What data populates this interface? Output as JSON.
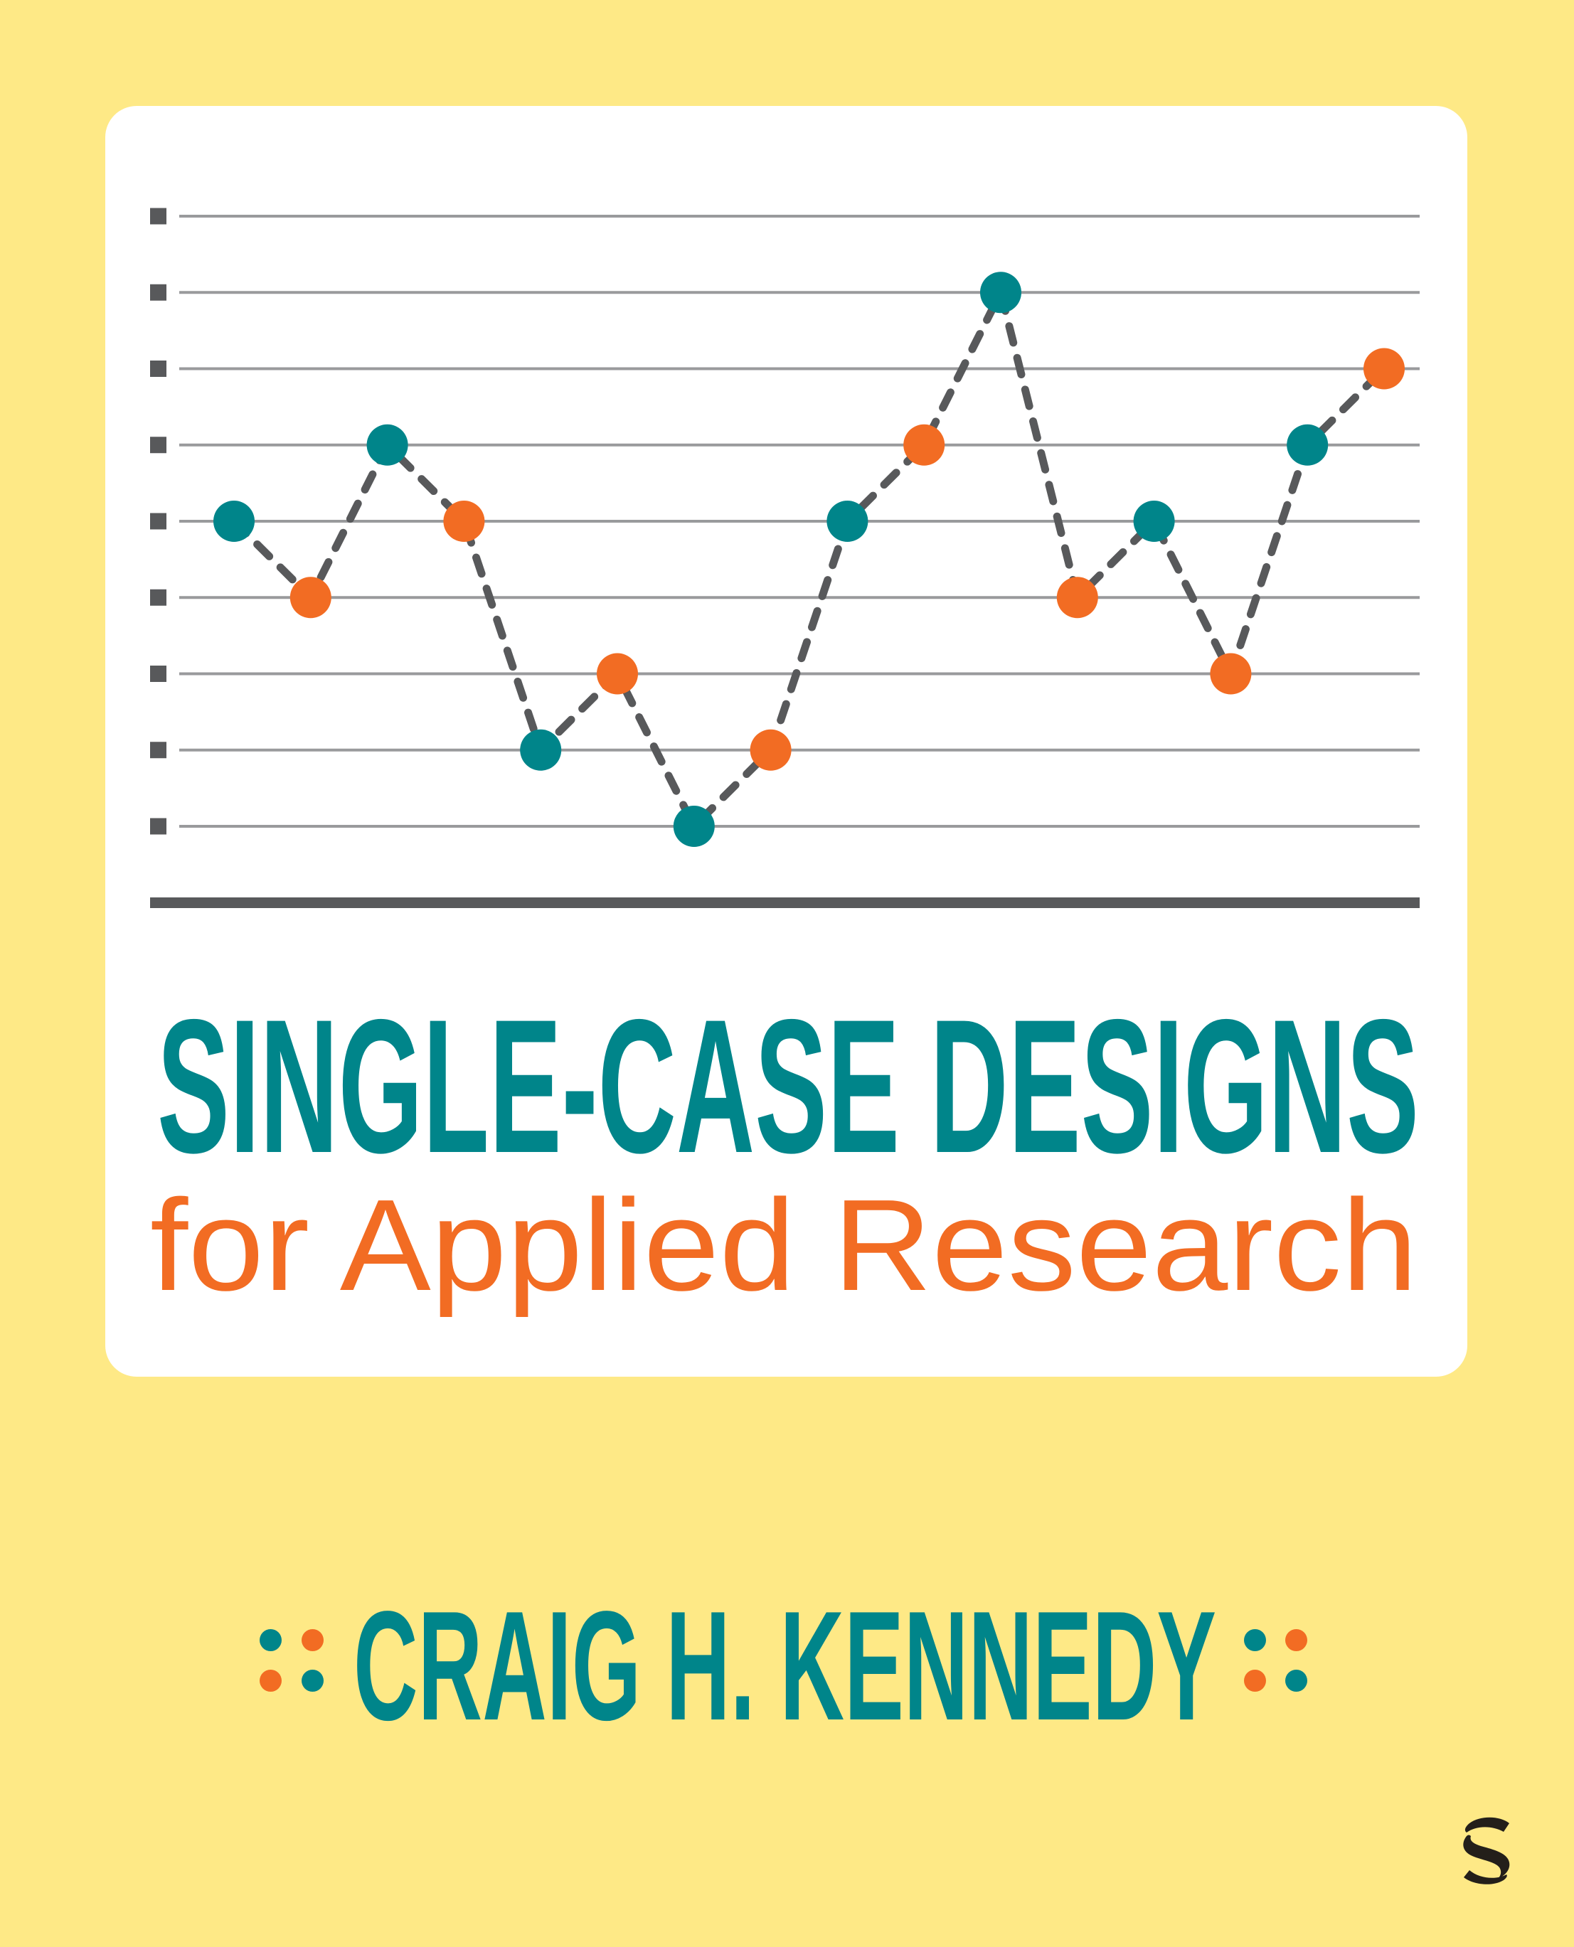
{
  "cover": {
    "title": "SINGLE-CASE DESIGNS",
    "subtitle": "for Applied Research",
    "author": "CRAIG H. KENNEDY",
    "publisher_logo": "sage-s-logo"
  },
  "colors": {
    "background": "#fee986",
    "card": "#ffffff",
    "teal": "#00858a",
    "orange": "#f26c23",
    "gridline": "#999a9c",
    "axis": "#58595b",
    "dash": "#58595b",
    "logo": "#231f1a"
  },
  "author_dots": {
    "left": [
      "teal",
      "orange",
      "orange",
      "teal"
    ],
    "right": [
      "teal",
      "orange",
      "orange",
      "teal"
    ]
  },
  "chart_data": {
    "type": "line",
    "title": "",
    "xlabel": "",
    "ylabel": "",
    "grid": true,
    "ylim": [
      1,
      9
    ],
    "y_ticks": [
      1,
      2,
      3,
      4,
      5,
      6,
      7,
      8,
      9
    ],
    "y_tick_labels": [
      "",
      "",
      "",
      "",
      "",
      "",
      "",
      "",
      ""
    ],
    "line_style": "dashed",
    "x": [
      1,
      2,
      3,
      4,
      5,
      6,
      7,
      8,
      9,
      10,
      11,
      12,
      13,
      14,
      15,
      16
    ],
    "values": [
      5,
      4,
      6,
      5,
      2,
      3,
      1,
      2,
      5,
      6,
      8,
      4,
      5,
      3,
      6,
      7
    ],
    "point_colors": [
      "teal",
      "orange",
      "teal",
      "orange",
      "teal",
      "orange",
      "teal",
      "orange",
      "teal",
      "orange",
      "teal",
      "orange",
      "teal",
      "orange",
      "teal",
      "orange"
    ],
    "series": [
      {
        "name": "teal",
        "x": [
          1,
          3,
          5,
          7,
          9,
          11,
          13,
          15
        ],
        "values": [
          5,
          6,
          2,
          1,
          5,
          8,
          5,
          6
        ]
      },
      {
        "name": "orange",
        "x": [
          2,
          4,
          6,
          8,
          10,
          12,
          14,
          16
        ],
        "values": [
          4,
          5,
          3,
          2,
          6,
          4,
          3,
          7
        ]
      }
    ],
    "legend": null
  }
}
